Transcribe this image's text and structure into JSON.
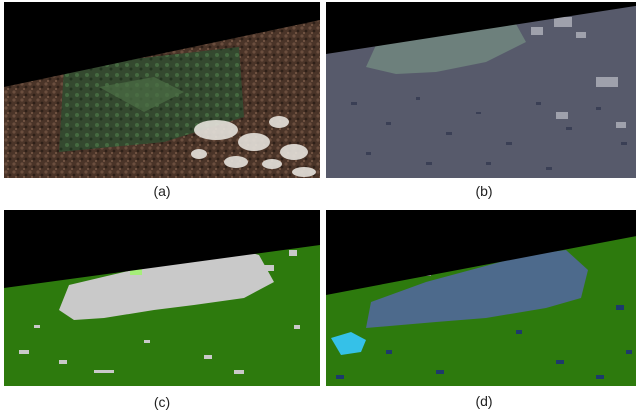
{
  "figure": {
    "panels": [
      {
        "id": "a",
        "caption": "(a)"
      },
      {
        "id": "b",
        "caption": "(b)"
      },
      {
        "id": "c",
        "caption": "(c)"
      },
      {
        "id": "d",
        "caption": "(d)"
      }
    ]
  },
  "colors": {
    "no_data": "#000000",
    "rgb_forest_dark": "#3b2a20",
    "rgb_clearing": "#3c5238",
    "rgb_cloud": "#e8e4e0",
    "gray_background": "#565a6a",
    "gray_clearing": "#6c7e7a",
    "class_forest": "#2d7a0d",
    "class_cloud": "#c8c8c8",
    "class_light_green": "#a6ee7a",
    "cluster_blue": "#4d6b8c",
    "cluster_cyan": "#35c1e8",
    "cluster_navy": "#1d3a6a",
    "cluster_gray": "#9a9a9a"
  }
}
